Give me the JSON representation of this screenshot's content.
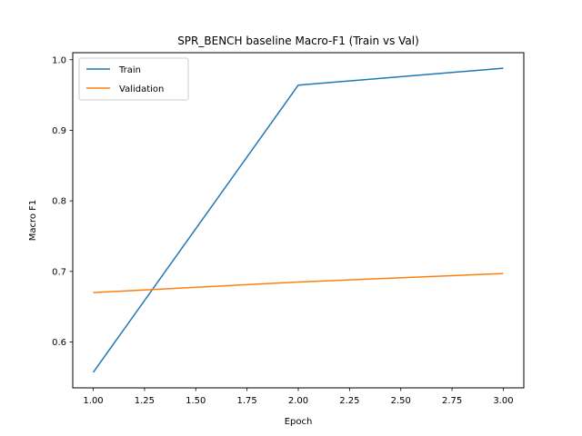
{
  "chart_data": {
    "type": "line",
    "title": "SPR_BENCH baseline Macro-F1 (Train vs Val)",
    "xlabel": "Epoch",
    "ylabel": "Macro F1",
    "x": [
      1,
      2,
      3
    ],
    "series": [
      {
        "name": "Train",
        "values": [
          0.557,
          0.964,
          0.988
        ],
        "color": "#1f77b4"
      },
      {
        "name": "Validation",
        "values": [
          0.67,
          0.685,
          0.697
        ],
        "color": "#ff7f0e"
      }
    ],
    "xlim": [
      0.9,
      3.1
    ],
    "ylim": [
      0.535,
      1.01
    ],
    "xticks": [
      1.0,
      1.25,
      1.5,
      1.75,
      2.0,
      2.25,
      2.5,
      2.75,
      3.0
    ],
    "xtick_labels": [
      "1.00",
      "1.25",
      "1.50",
      "1.75",
      "2.00",
      "2.25",
      "2.50",
      "2.75",
      "3.00"
    ],
    "yticks": [
      0.6,
      0.7,
      0.8,
      0.9,
      1.0
    ],
    "ytick_labels": [
      "0.6",
      "0.7",
      "0.8",
      "0.9",
      "1.0"
    ],
    "grid": false,
    "legend_position": "top-left"
  }
}
